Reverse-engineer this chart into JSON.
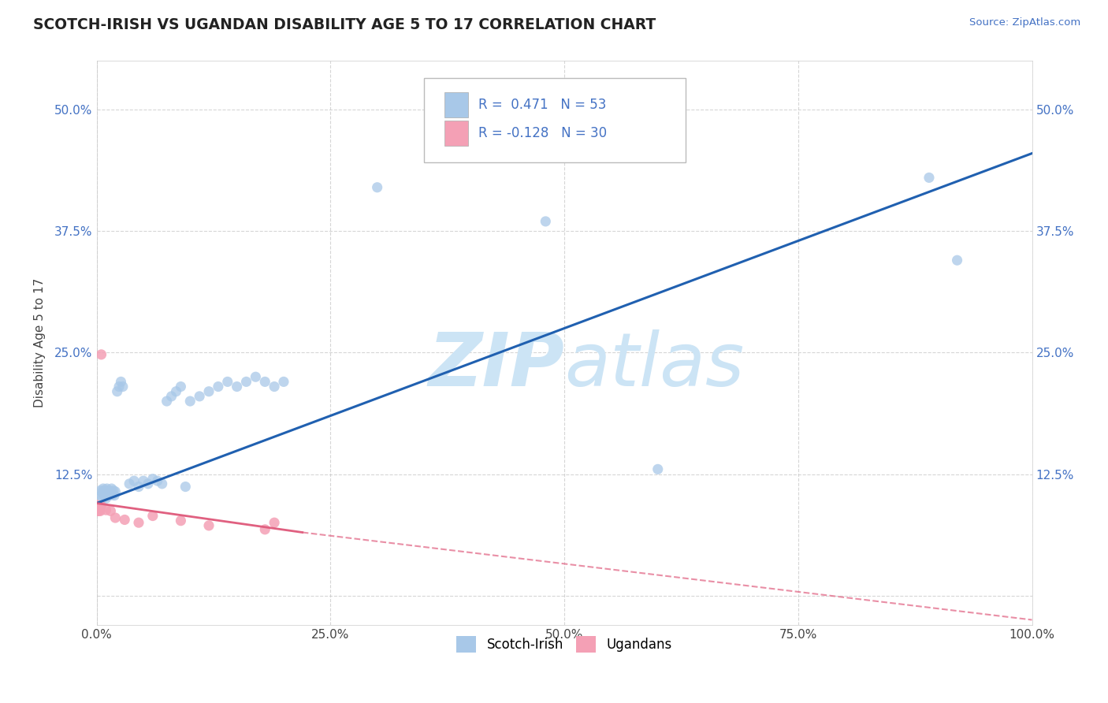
{
  "title": "SCOTCH-IRISH VS UGANDAN DISABILITY AGE 5 TO 17 CORRELATION CHART",
  "source": "Source: ZipAtlas.com",
  "ylabel": "Disability Age 5 to 17",
  "xlim": [
    0,
    1.0
  ],
  "ylim": [
    -0.03,
    0.55
  ],
  "xticks": [
    0.0,
    0.25,
    0.5,
    0.75,
    1.0
  ],
  "xticklabels": [
    "0.0%",
    "25.0%",
    "50.0%",
    "75.0%",
    "100.0%"
  ],
  "yticks": [
    0.0,
    0.125,
    0.25,
    0.375,
    0.5
  ],
  "yticklabels": [
    "",
    "12.5%",
    "25.0%",
    "37.5%",
    "50.0%"
  ],
  "r_scotch": 0.471,
  "n_scotch": 53,
  "r_ugandan": -0.128,
  "n_ugandan": 30,
  "scotch_color": "#a8c8e8",
  "ugandan_color": "#f4a0b5",
  "trend_scotch_color": "#2060b0",
  "trend_ugandan_color": "#e06080",
  "background_color": "#ffffff",
  "watermark_color": "#cce4f5",
  "scotch_x": [
    0.002,
    0.003,
    0.004,
    0.004,
    0.005,
    0.006,
    0.006,
    0.007,
    0.008,
    0.008,
    0.009,
    0.01,
    0.01,
    0.011,
    0.011,
    0.012,
    0.013,
    0.014,
    0.015,
    0.016,
    0.017,
    0.018,
    0.019,
    0.02,
    0.021,
    0.022,
    0.023,
    0.025,
    0.027,
    0.03,
    0.032,
    0.035,
    0.037,
    0.04,
    0.043,
    0.047,
    0.05,
    0.055,
    0.06,
    0.065,
    0.07,
    0.075,
    0.08,
    0.085,
    0.09,
    0.1,
    0.11,
    0.12,
    0.13,
    0.14,
    0.15,
    0.6,
    0.9
  ],
  "scotch_y": [
    0.105,
    0.1,
    0.11,
    0.105,
    0.1,
    0.105,
    0.1,
    0.11,
    0.1,
    0.105,
    0.1,
    0.105,
    0.1,
    0.11,
    0.1,
    0.105,
    0.11,
    0.105,
    0.1,
    0.105,
    0.11,
    0.1,
    0.105,
    0.11,
    0.1,
    0.105,
    0.11,
    0.105,
    0.1,
    0.11,
    0.105,
    0.1,
    0.115,
    0.11,
    0.1,
    0.115,
    0.11,
    0.105,
    0.12,
    0.115,
    0.11,
    0.12,
    0.115,
    0.21,
    0.215,
    0.22,
    0.215,
    0.22,
    0.225,
    0.23,
    0.235,
    0.13,
    0.43
  ],
  "ugandan_x": [
    0.0,
    0.0,
    0.0,
    0.0,
    0.0,
    0.0,
    0.0,
    0.0,
    0.001,
    0.001,
    0.001,
    0.001,
    0.001,
    0.002,
    0.002,
    0.002,
    0.003,
    0.003,
    0.004,
    0.004,
    0.005,
    0.006,
    0.007,
    0.008,
    0.01,
    0.015,
    0.02,
    0.03,
    0.06,
    0.12
  ],
  "ugandan_y": [
    0.09,
    0.085,
    0.09,
    0.085,
    0.09,
    0.085,
    0.09,
    0.085,
    0.09,
    0.085,
    0.09,
    0.085,
    0.09,
    0.085,
    0.09,
    0.085,
    0.09,
    0.085,
    0.09,
    0.085,
    0.245,
    0.085,
    0.09,
    0.085,
    0.09,
    0.085,
    0.085,
    0.075,
    0.08,
    0.07
  ]
}
